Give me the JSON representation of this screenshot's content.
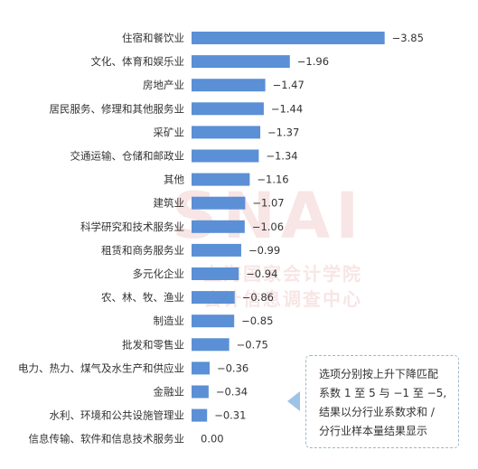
{
  "chart_data": {
    "type": "bar",
    "orientation": "horizontal",
    "categories": [
      "住宿和餐饮业",
      "文化、体育和娱乐业",
      "房地产业",
      "居民服务、修理和其他服务业",
      "采矿业",
      "交通运输、仓储和邮政业",
      "其他",
      "建筑业",
      "科学研究和技术服务业",
      "租赁和商务服务业",
      "多元化企业",
      "农、林、牧、渔业",
      "制造业",
      "批发和零售业",
      "电力、热力、煤气及水生产和供应业",
      "金融业",
      "水利、环境和公共设施管理业",
      "信息传输、软件和信息技术服务业"
    ],
    "values": [
      -3.85,
      -1.96,
      -1.47,
      -1.44,
      -1.37,
      -1.34,
      -1.16,
      -1.07,
      -1.06,
      -0.99,
      -0.94,
      -0.86,
      -0.85,
      -0.75,
      -0.36,
      -0.34,
      -0.31,
      0.0
    ],
    "value_labels": [
      "−3.85",
      "−1.96",
      "−1.47",
      "−1.44",
      "−1.37",
      "−1.34",
      "−1.16",
      "−1.07",
      "−1.06",
      "−0.99",
      "−0.94",
      "−0.86",
      "−0.85",
      "−0.75",
      "−0.36",
      "−0.34",
      "−0.31",
      "0.00"
    ],
    "title": "",
    "xlabel": "",
    "ylabel": "",
    "bar_color": "#5b8fd6",
    "grid": false,
    "legend": "none"
  },
  "note": {
    "lines": [
      "选项分别按上升下降匹配",
      "系数 1 至 5 与 −1 至 −5,",
      "结果以分行业系数求和 /",
      "分行业样本量结果显示"
    ],
    "border_color": "#9fb6c9",
    "pointer_color": "#9fc3e8"
  },
  "watermark": {
    "line1": "上海国家会计学院",
    "line2": "会计信息调查中心",
    "logo_text": "SNAI",
    "color": "#e8a6a6"
  }
}
